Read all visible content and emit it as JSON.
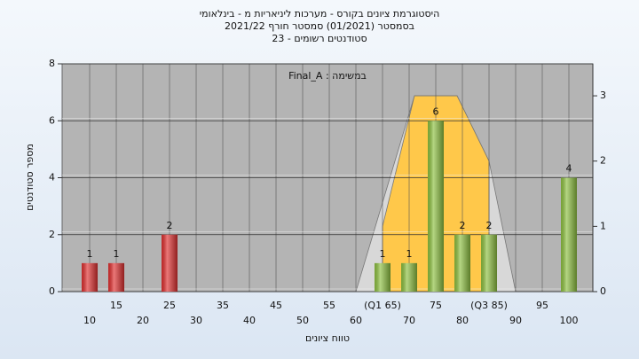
{
  "chart_data": {
    "type": "bar",
    "title": [
      "היסטוגרמת ציונים בקורס - מערכות ליניאריות מ - בינלאומי",
      "בסמסטר  (01/2021)  סמסטר חורף 2021/22",
      "סטודנטים רשומים - 23"
    ],
    "annotation": "Final_A : במשימה",
    "ylabel": "מספר סטודנטים",
    "xlabel": "טווח ציונים",
    "x": [
      10,
      15,
      20,
      25,
      30,
      35,
      40,
      45,
      50,
      55,
      60,
      65,
      70,
      75,
      80,
      85,
      90,
      95,
      100
    ],
    "values": [
      1,
      1,
      0,
      2,
      0,
      0,
      0,
      0,
      0,
      0,
      0,
      1,
      1,
      6,
      2,
      2,
      0,
      0,
      4
    ],
    "bar_colors": [
      "#e03030",
      "#e03030",
      "#e03030",
      "#e03030",
      "#8dc040",
      "#8dc040",
      "#8dc040",
      "#8dc040",
      "#8dc040",
      "#8dc040",
      "#8dc040",
      "#8dc040",
      "#8dc040",
      "#8dc040",
      "#8dc040",
      "#8dc040",
      "#8dc040",
      "#8dc040",
      "#8dc040"
    ],
    "xlim": [
      4.83,
      104.5
    ],
    "xticks": [
      10,
      15,
      20,
      25,
      30,
      35,
      40,
      45,
      50,
      55,
      60,
      {
        "value": 65,
        "label": "(Q1 65)"
      },
      70,
      75,
      80,
      {
        "value": 85,
        "label": "(Q3 85)"
      },
      90,
      95,
      100
    ],
    "ylim": [
      0,
      8
    ],
    "yticks": [
      0,
      2,
      4,
      6,
      8
    ],
    "y2lim": [
      0,
      3.49
    ],
    "y2ticks": [
      0,
      1,
      2,
      3
    ],
    "areas": [
      {
        "axis": "y2",
        "color": "#d8d8d8",
        "x": [
          60,
          71,
          79,
          85,
          90
        ],
        "values": [
          0,
          3,
          3,
          2,
          0
        ]
      },
      {
        "axis": "y2",
        "color": "#ffc84a",
        "x": [
          65,
          71,
          79,
          85
        ],
        "values": [
          1,
          3,
          3,
          2
        ]
      }
    ],
    "grid": true
  }
}
